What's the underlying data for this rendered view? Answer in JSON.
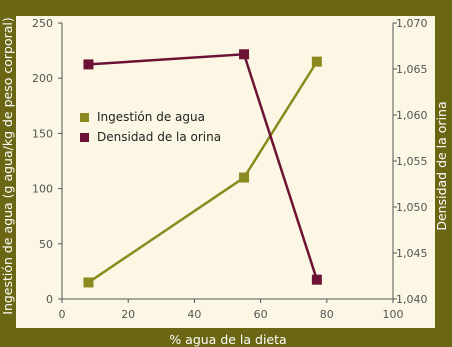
{
  "chart_data": {
    "type": "line",
    "x": [
      8,
      55,
      77
    ],
    "xlabel": "% agua de la dieta",
    "ylabel_left": "Ingestión de agua (g agua/kg de peso corporal)",
    "ylabel_right": "Densidad de la orina",
    "xlim": [
      0,
      100
    ],
    "ylim_left": [
      0,
      250
    ],
    "ylim_right": [
      1.04,
      1.07
    ],
    "x_ticks": [
      "0",
      "20",
      "40",
      "60",
      "80",
      "100"
    ],
    "y_left_ticks": [
      "0",
      "50",
      "100",
      "150",
      "200",
      "250"
    ],
    "y_right_ticks": [
      "1,040",
      "1,045",
      "1,050",
      "1,055",
      "1,060",
      "1,065",
      "1,070"
    ],
    "grid": false,
    "legend_position": "left-middle",
    "series": [
      {
        "name": "Ingestión de agua",
        "axis": "left",
        "values": [
          15,
          110,
          215
        ],
        "color": "#8a8a1f"
      },
      {
        "name": "Densidad de la orina",
        "axis": "right",
        "values": [
          1.0655,
          1.0666,
          1.0421
        ],
        "color": "#6b1235"
      }
    ],
    "colors": {
      "frame": "#6b6613",
      "plot_background": "#fcf7e4"
    }
  }
}
